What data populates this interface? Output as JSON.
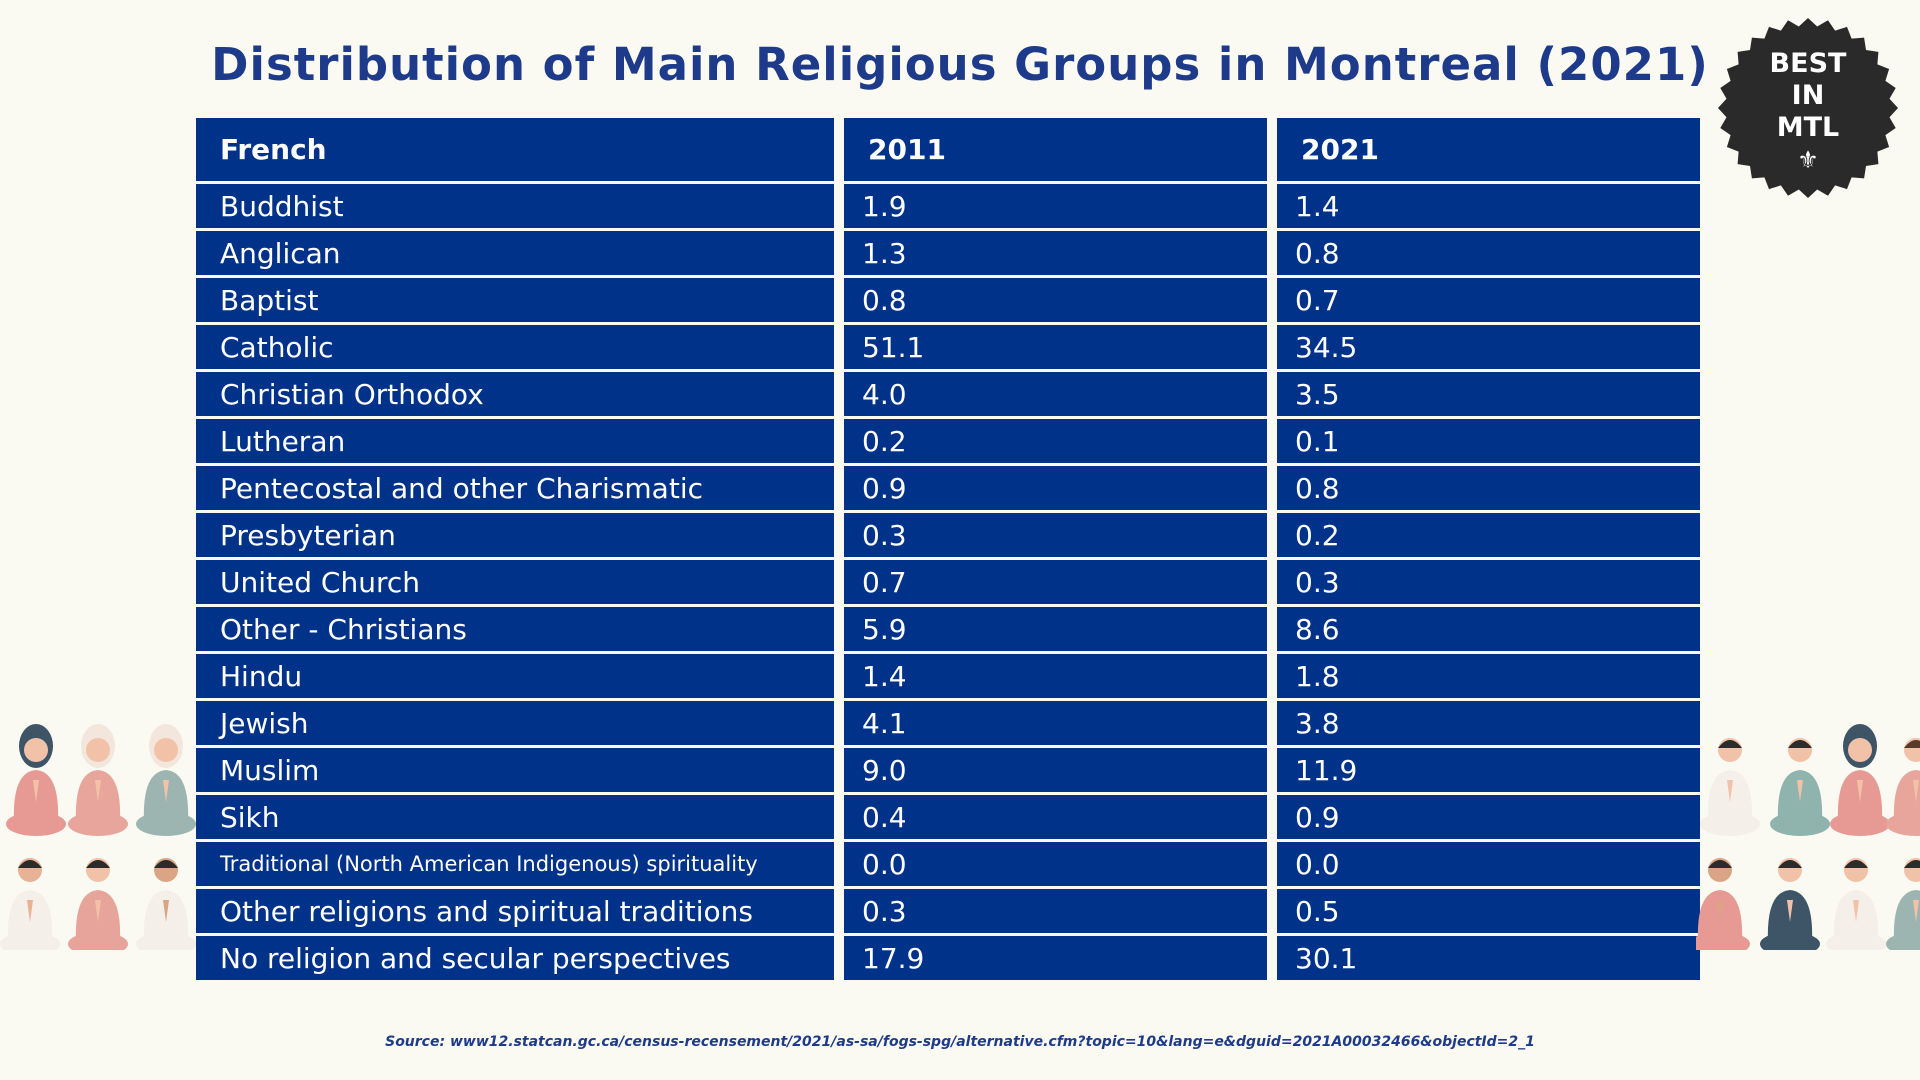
{
  "title": "Distribution of Main Religious Groups in Montreal (2021)",
  "badge": {
    "lines": [
      "BEST",
      "IN",
      "MTL"
    ],
    "symbol": "⚜"
  },
  "table": {
    "headers": [
      "French",
      "2011",
      "2021"
    ]
  },
  "chart_data": {
    "type": "table",
    "title": "Distribution of Main Religious Groups in Montreal (2021)",
    "columns": [
      "French",
      "2011",
      "2021"
    ],
    "rows": [
      [
        "Buddhist",
        "1.9",
        "1.4"
      ],
      [
        "Anglican",
        "1.3",
        "0.8"
      ],
      [
        "Baptist",
        "0.8",
        "0.7"
      ],
      [
        "Catholic",
        "51.1",
        "34.5"
      ],
      [
        "Christian Orthodox",
        "4.0",
        "3.5"
      ],
      [
        "Lutheran",
        "0.2",
        "0.1"
      ],
      [
        "Pentecostal and other Charismatic",
        "0.9",
        "0.8"
      ],
      [
        "Presbyterian",
        "0.3",
        "0.2"
      ],
      [
        "United Church",
        "0.7",
        "0.3"
      ],
      [
        "Other - Christians",
        "5.9",
        "8.6"
      ],
      [
        "Hindu",
        "1.4",
        "1.8"
      ],
      [
        "Jewish",
        "4.1",
        "3.8"
      ],
      [
        "Muslim",
        "9.0",
        "11.9"
      ],
      [
        "Sikh",
        "0.4",
        "0.9"
      ],
      [
        "Traditional (North American Indigenous) spirituality",
        "0.0",
        "0.0"
      ],
      [
        "Other religions and spiritual traditions",
        "0.3",
        "0.5"
      ],
      [
        "No religion and secular perspectives",
        "17.9",
        "30.1"
      ]
    ]
  },
  "source": "Source: www12.statcan.gc.ca/census-recensement/2021/as-sa/fogs-spg/alternative.cfm?topic=10&lang=e&dguid=2021A00032466&objectId=2_1",
  "colors": {
    "background": "#fbfaf2",
    "table_fill": "#01328a",
    "title": "#1e3a8a",
    "badge": "#2a2a2a"
  }
}
